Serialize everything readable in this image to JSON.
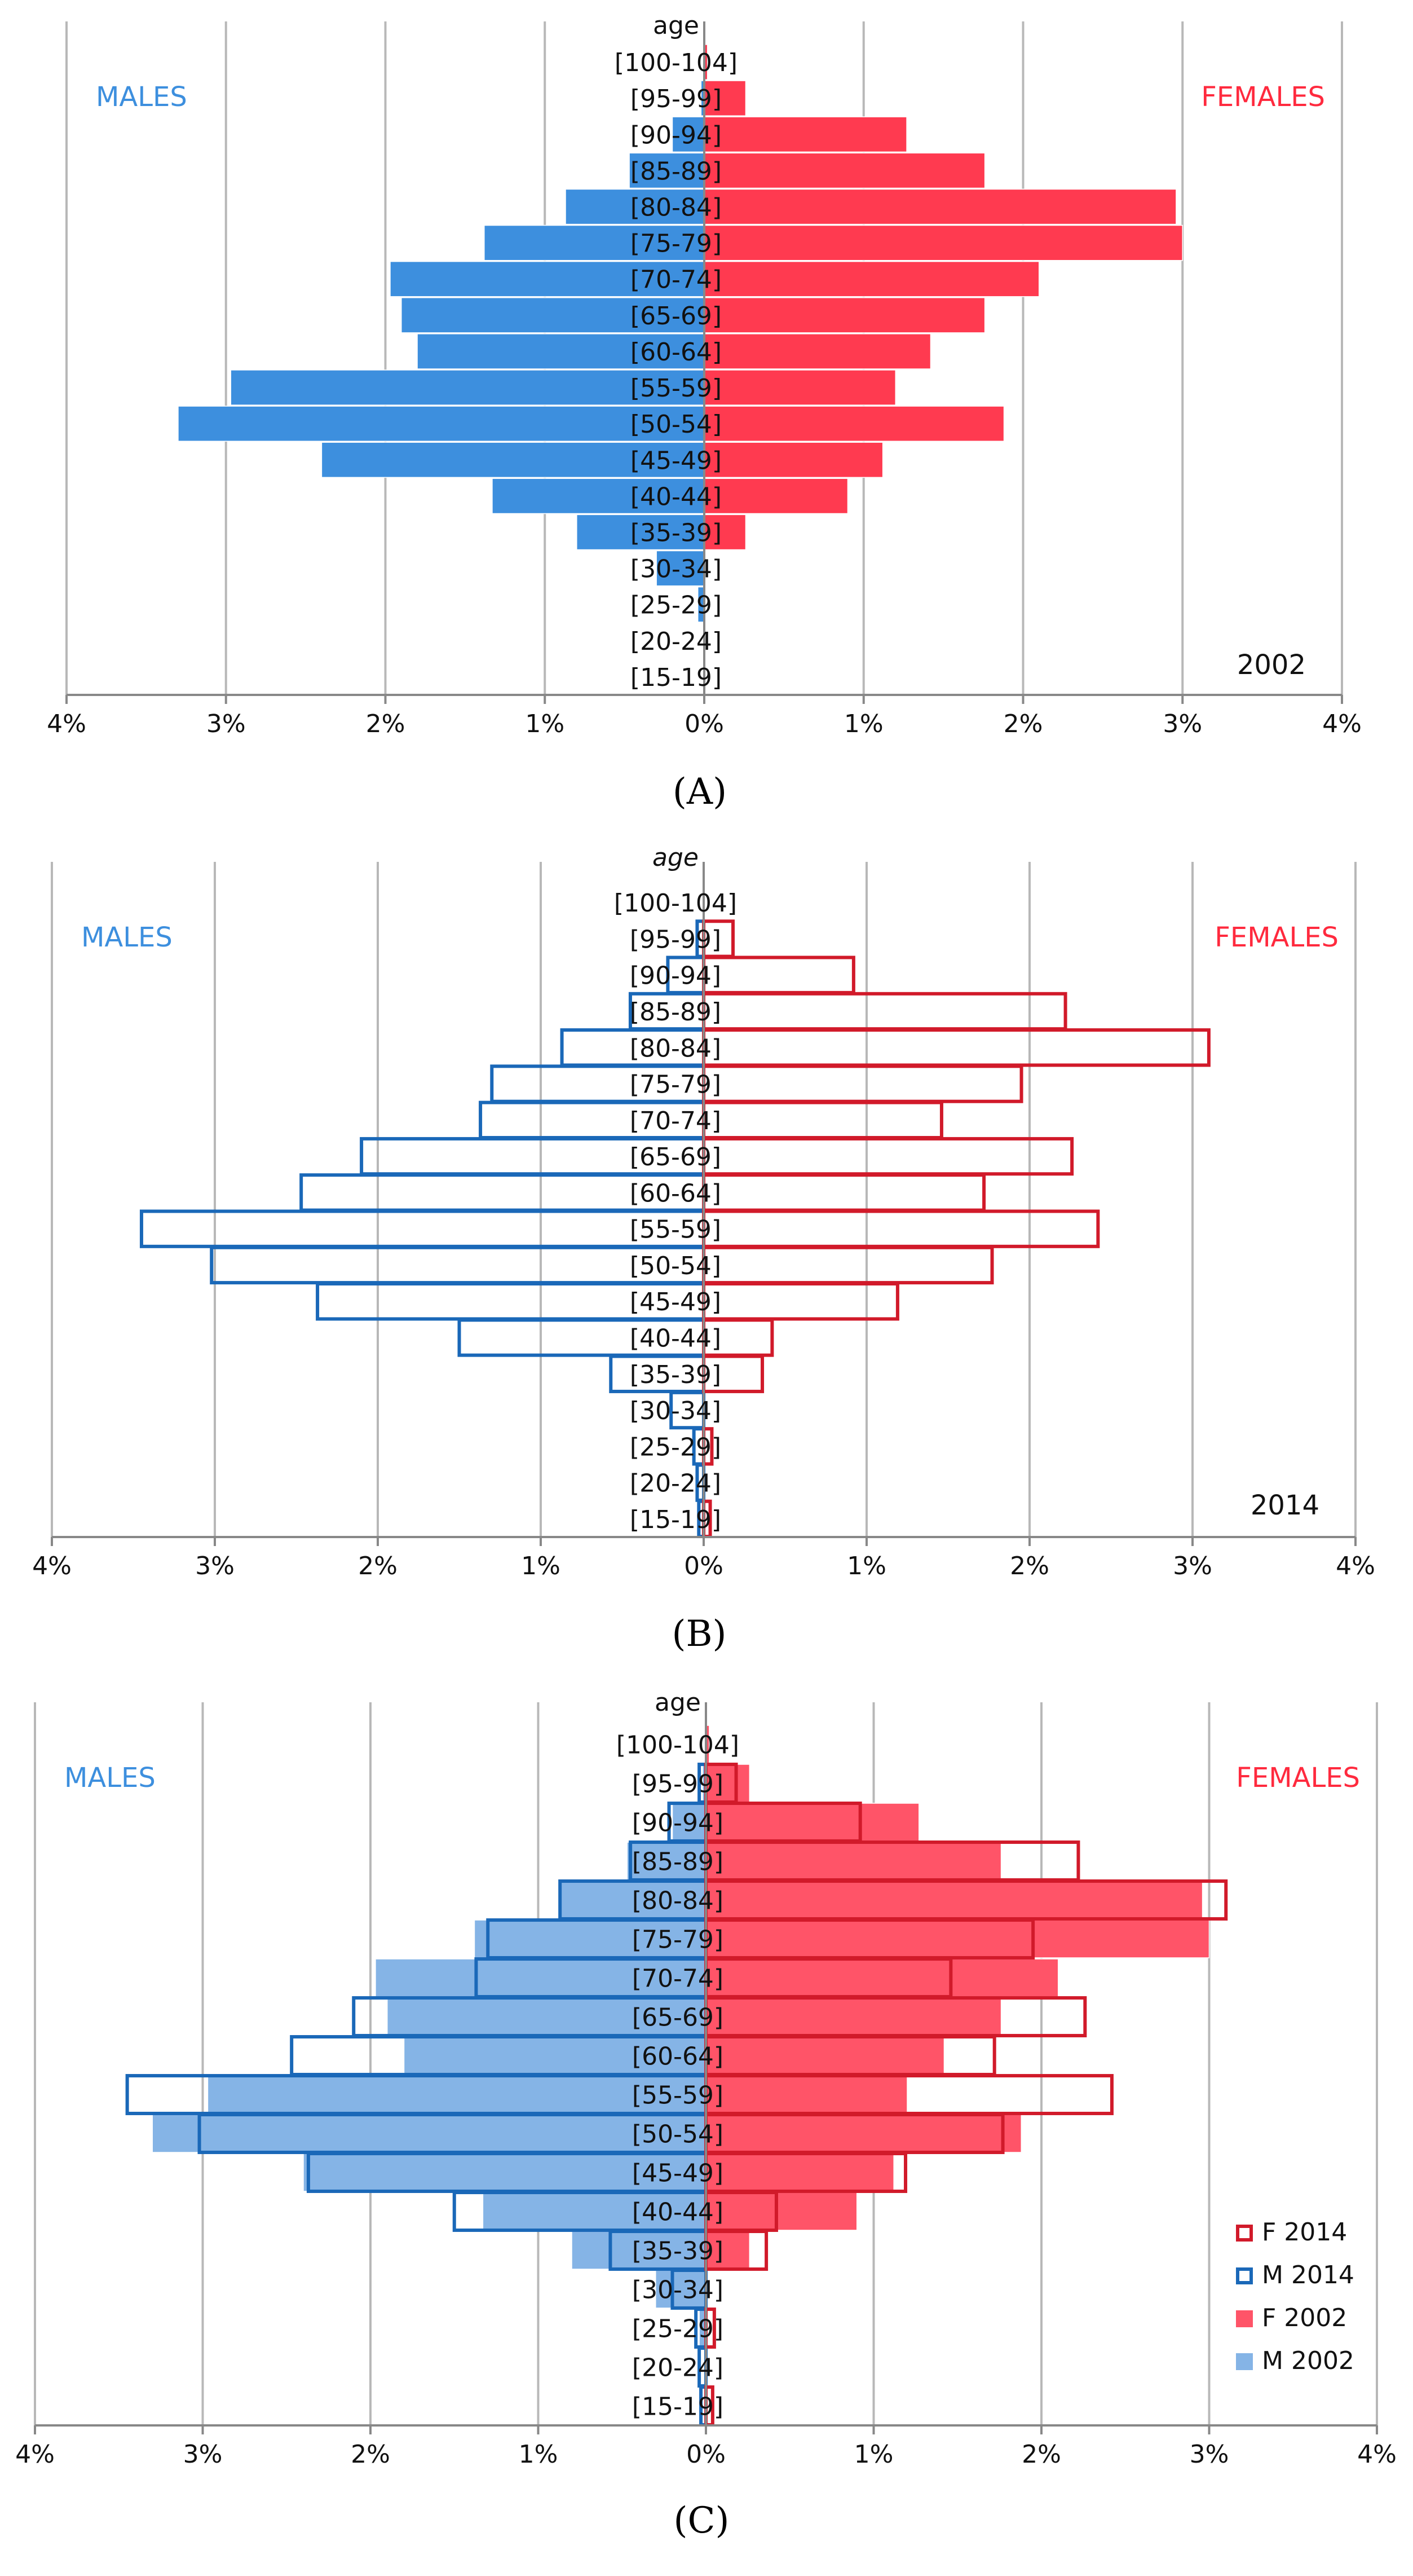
{
  "colors": {
    "male_fill": "#3d8fde",
    "male_fill_light": "#85b4e6",
    "male_outline": "#1a68b8",
    "female_fill": "#ff3a50",
    "female_fill_light": "#ff5468",
    "female_outline": "#d11a2a",
    "males_label": "#3d8fde",
    "females_label": "#ff2a3e",
    "grid": "#b8b8b8",
    "axis": "#888888"
  },
  "chart_data": [
    {
      "type": "bar",
      "orientation": "horizontal",
      "subtype": "population-pyramid",
      "panel": "A",
      "caption": "(A)",
      "title": "age",
      "males_label": "MALES",
      "females_label": "FEMALES",
      "year_label": "2002",
      "categories": [
        "[100-104]",
        "[95-99]",
        "[90-94]",
        "[85-89]",
        "[80-84]",
        "[75-79]",
        "[70-74]",
        "[65-69]",
        "[60-64]",
        "[55-59]",
        "[50-54]",
        "[45-49]",
        "[40-44]",
        "[35-39]",
        "[30-34]",
        "[25-29]",
        "[20-24]",
        "[15-19]"
      ],
      "xlim": [
        -4,
        4
      ],
      "x_ticks": [
        -4,
        -3,
        -2,
        -1,
        0,
        1,
        2,
        3,
        4
      ],
      "x_tick_labels": [
        "4%",
        "3%",
        "2%",
        "1%",
        "0%",
        "1%",
        "2%",
        "3%",
        "4%"
      ],
      "series": [
        {
          "name": "M 2002",
          "side": "left",
          "style": "filled",
          "color": "#3d8fde",
          "values": [
            0.0,
            0.02,
            0.2,
            0.47,
            0.87,
            1.38,
            1.97,
            1.9,
            1.8,
            2.97,
            3.3,
            2.4,
            1.33,
            0.8,
            0.3,
            0.04,
            0.0,
            0.0
          ]
        },
        {
          "name": "F 2002",
          "side": "right",
          "style": "filled",
          "color": "#ff3a50",
          "values": [
            0.02,
            0.26,
            1.27,
            1.76,
            2.96,
            3.0,
            2.1,
            1.76,
            1.42,
            1.2,
            1.88,
            1.12,
            0.9,
            0.26,
            0.0,
            0.0,
            0.0,
            0.0
          ]
        }
      ]
    },
    {
      "type": "bar",
      "orientation": "horizontal",
      "subtype": "population-pyramid",
      "panel": "B",
      "caption": "(B)",
      "title": "age",
      "males_label": "MALES",
      "females_label": "FEMALES",
      "year_label": "2014",
      "categories": [
        "[100-104]",
        "[95-99]",
        "[90-94]",
        "[85-89]",
        "[80-84]",
        "[75-79]",
        "[70-74]",
        "[65-69]",
        "[60-64]",
        "[55-59]",
        "[50-54]",
        "[45-49]",
        "[40-44]",
        "[35-39]",
        "[30-34]",
        "[25-29]",
        "[20-24]",
        "[15-19]"
      ],
      "xlim": [
        -4,
        4
      ],
      "x_ticks": [
        -4,
        -3,
        -2,
        -1,
        0,
        1,
        2,
        3,
        4
      ],
      "x_tick_labels": [
        "4%",
        "3%",
        "2%",
        "1%",
        "0%",
        "1%",
        "2%",
        "3%",
        "4%"
      ],
      "series": [
        {
          "name": "M 2014",
          "side": "left",
          "style": "outline",
          "color": "#1a68b8",
          "values": [
            0.0,
            0.04,
            0.22,
            0.45,
            0.87,
            1.3,
            1.37,
            2.1,
            2.47,
            3.45,
            3.02,
            2.37,
            1.5,
            0.57,
            0.2,
            0.06,
            0.04,
            0.03
          ]
        },
        {
          "name": "F 2014",
          "side": "right",
          "style": "outline",
          "color": "#d11a2a",
          "values": [
            0.0,
            0.18,
            0.92,
            2.22,
            3.1,
            1.95,
            1.46,
            2.26,
            1.72,
            2.42,
            1.77,
            1.19,
            0.42,
            0.36,
            0.0,
            0.05,
            0.0,
            0.04
          ]
        }
      ]
    },
    {
      "type": "bar",
      "orientation": "horizontal",
      "subtype": "population-pyramid",
      "panel": "C",
      "caption": "(C)",
      "title": "age",
      "males_label": "MALES",
      "females_label": "FEMALES",
      "year_label": "",
      "categories": [
        "[100-104]",
        "[95-99]",
        "[90-94]",
        "[85-89]",
        "[80-84]",
        "[75-79]",
        "[70-74]",
        "[65-69]",
        "[60-64]",
        "[55-59]",
        "[50-54]",
        "[45-49]",
        "[40-44]",
        "[35-39]",
        "[30-34]",
        "[25-29]",
        "[20-24]",
        "[15-19]"
      ],
      "xlim": [
        -4,
        4
      ],
      "x_ticks": [
        -4,
        -3,
        -2,
        -1,
        0,
        1,
        2,
        3,
        4
      ],
      "x_tick_labels": [
        "4%",
        "3%",
        "2%",
        "1%",
        "0%",
        "1%",
        "2%",
        "3%",
        "4%"
      ],
      "legend": [
        "F 2014",
        "M 2014",
        "F 2002",
        "M 2002"
      ],
      "legend_position": "bottom-right",
      "series": [
        {
          "name": "M 2002",
          "side": "left",
          "style": "filled",
          "color": "#85b4e6",
          "values": [
            0.0,
            0.02,
            0.2,
            0.47,
            0.87,
            1.38,
            1.97,
            1.9,
            1.8,
            2.97,
            3.3,
            2.4,
            1.33,
            0.8,
            0.3,
            0.04,
            0.0,
            0.0
          ]
        },
        {
          "name": "F 2002",
          "side": "right",
          "style": "filled",
          "color": "#ff5468",
          "values": [
            0.02,
            0.26,
            1.27,
            1.76,
            2.96,
            3.0,
            2.1,
            1.76,
            1.42,
            1.2,
            1.88,
            1.12,
            0.9,
            0.26,
            0.0,
            0.0,
            0.0,
            0.0
          ]
        },
        {
          "name": "M 2014",
          "side": "left",
          "style": "outline",
          "color": "#1a68b8",
          "values": [
            0.0,
            0.04,
            0.22,
            0.45,
            0.87,
            1.3,
            1.37,
            2.1,
            2.47,
            3.45,
            3.02,
            2.37,
            1.5,
            0.57,
            0.2,
            0.06,
            0.04,
            0.03
          ]
        },
        {
          "name": "F 2014",
          "side": "right",
          "style": "outline",
          "color": "#d11a2a",
          "values": [
            0.0,
            0.18,
            0.92,
            2.22,
            3.1,
            1.95,
            1.46,
            2.26,
            1.72,
            2.42,
            1.77,
            1.19,
            0.42,
            0.36,
            0.0,
            0.05,
            0.0,
            0.04
          ]
        }
      ]
    }
  ]
}
